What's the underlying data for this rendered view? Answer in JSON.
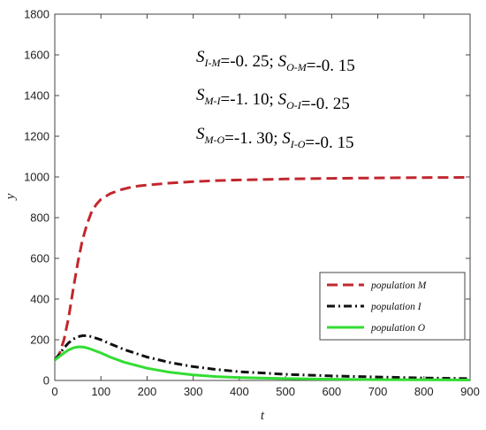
{
  "chart_data": {
    "type": "line",
    "title": "",
    "xlabel": "t",
    "ylabel": "y",
    "xlim": [
      0,
      900
    ],
    "ylim": [
      0,
      1800
    ],
    "xticks": [
      0,
      100,
      200,
      300,
      400,
      500,
      600,
      700,
      800,
      900
    ],
    "yticks": [
      0,
      200,
      400,
      600,
      800,
      1000,
      1200,
      1400,
      1600,
      1800
    ],
    "grid": false,
    "legend_position": "lower-right",
    "annotations": [
      {
        "lines": [
          [
            {
              "S": "S",
              "sub": "I-M"
            },
            {
              "v": "=-0. 25; "
            },
            {
              "S": "S",
              "sub": "O-M"
            },
            {
              "v": "=-0. 15"
            }
          ]
        ]
      },
      {
        "lines": [
          [
            {
              "S": "S",
              "sub": "M-I"
            },
            {
              "v": "=-1. 10; "
            },
            {
              "S": "S",
              "sub": "O-I"
            },
            {
              "v": "=-0. 25"
            }
          ]
        ]
      },
      {
        "lines": [
          [
            {
              "S": "S",
              "sub": "M-O"
            },
            {
              "v": "=-1. 30; "
            },
            {
              "S": "S",
              "sub": "I-O"
            },
            {
              "v": "=-0. 15"
            }
          ]
        ]
      }
    ],
    "series": [
      {
        "name": "population M",
        "color": "#c1272d",
        "style": "dashed",
        "x": [
          0,
          10,
          20,
          30,
          40,
          50,
          60,
          70,
          80,
          90,
          100,
          120,
          140,
          160,
          180,
          200,
          250,
          300,
          350,
          400,
          500,
          600,
          700,
          800,
          900
        ],
        "y": [
          100,
          130,
          200,
          310,
          450,
          580,
          690,
          770,
          830,
          865,
          890,
          918,
          935,
          947,
          955,
          960,
          970,
          977,
          982,
          985,
          990,
          993,
          995,
          997,
          998
        ]
      },
      {
        "name": "population I",
        "color": "#111111",
        "style": "dashdot",
        "x": [
          0,
          10,
          20,
          30,
          40,
          50,
          60,
          70,
          80,
          100,
          120,
          150,
          200,
          250,
          300,
          350,
          400,
          500,
          600,
          700,
          800,
          900
        ],
        "y": [
          100,
          130,
          160,
          185,
          203,
          215,
          220,
          220,
          215,
          200,
          180,
          152,
          115,
          88,
          68,
          54,
          43,
          30,
          22,
          17,
          12,
          9
        ]
      },
      {
        "name": "population O",
        "color": "#33dd33",
        "style": "solid",
        "x": [
          0,
          10,
          20,
          30,
          40,
          50,
          60,
          70,
          80,
          100,
          120,
          150,
          200,
          250,
          300,
          350,
          400,
          500,
          600,
          700,
          800,
          900
        ],
        "y": [
          100,
          118,
          135,
          150,
          160,
          165,
          165,
          160,
          152,
          135,
          115,
          90,
          60,
          40,
          27,
          19,
          14,
          9,
          6,
          4,
          3,
          2
        ]
      }
    ]
  }
}
